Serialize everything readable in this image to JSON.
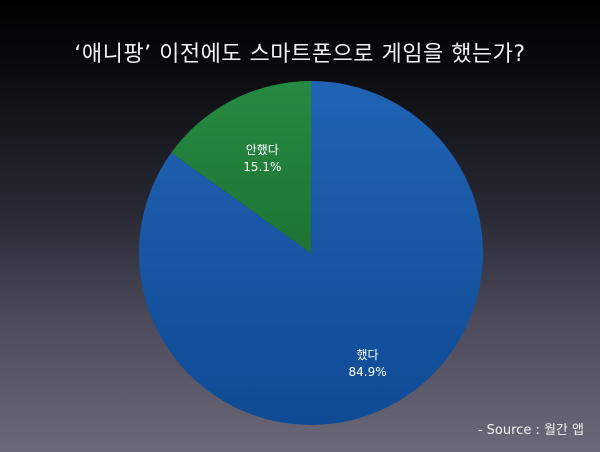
{
  "title": "‘애니팡’ 이전에도 스마트폰으로 게임을 했는가?",
  "source": "- Source :  월간 앱",
  "colors": {
    "slice_yes": "#1b56a4",
    "slice_no": "#23843c"
  },
  "chart_data": {
    "type": "pie",
    "title": "‘애니팡’ 이전에도 스마트폰으로 게임을 했는가?",
    "categories": [
      "했다",
      "안했다"
    ],
    "values": [
      84.9,
      15.1
    ],
    "value_labels": [
      "84.9%",
      "15.1%"
    ],
    "start": "12 o'clock",
    "direction": "clockwise",
    "legend": "none"
  }
}
